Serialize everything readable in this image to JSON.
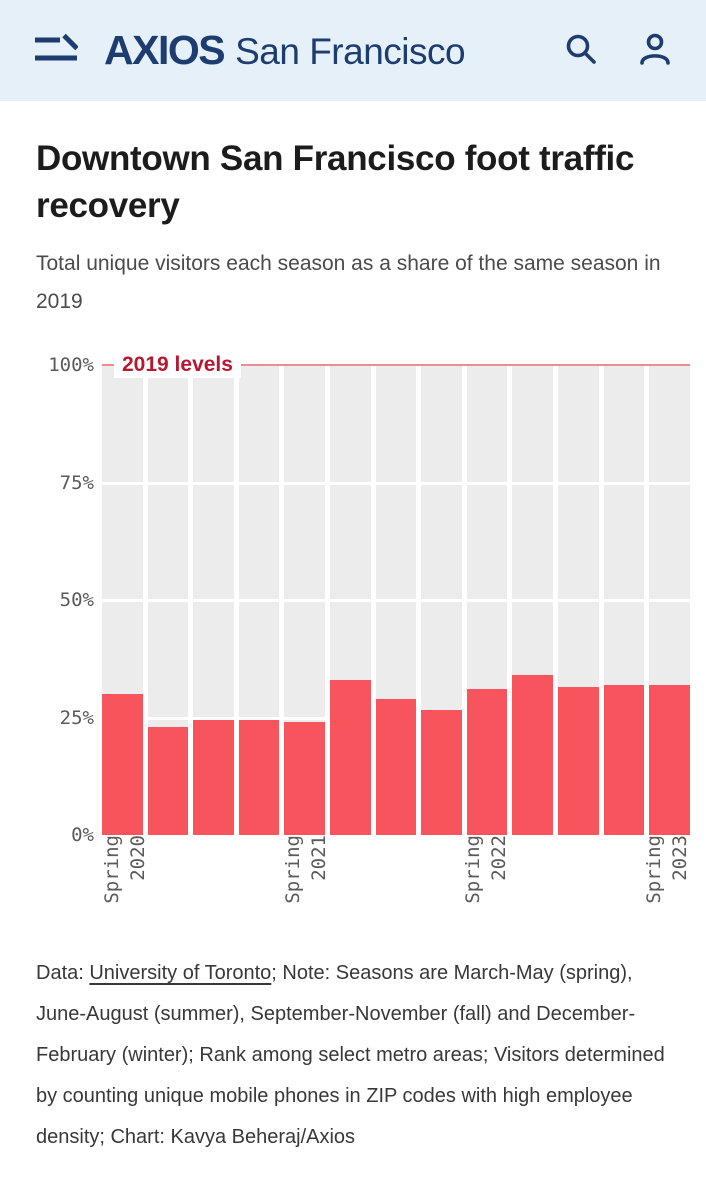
{
  "header": {
    "brand": "AXIOS",
    "edition": "San Francisco",
    "icons": {
      "menu": "menu-icon",
      "search": "search-icon",
      "profile": "profile-icon"
    },
    "navy": "#1d3c6f",
    "background": "#e6f0f9"
  },
  "article": {
    "title": "Downtown San Francisco foot traffic recovery",
    "subtitle": "Total unique visitors each season as a share of the same season in 2019"
  },
  "chart_data": {
    "type": "bar",
    "title": "Downtown San Francisco foot traffic recovery",
    "subtitle": "Total unique visitors each season as a share of the same season in 2019",
    "values": [
      30,
      23,
      24.5,
      24.5,
      24,
      33,
      29,
      26.5,
      31,
      34,
      31.5,
      32,
      32
    ],
    "x_tick_labels": [
      {
        "index": 0,
        "label": "Spring 2020"
      },
      {
        "index": 4,
        "label": "Spring 2021"
      },
      {
        "index": 8,
        "label": "Spring 2022"
      },
      {
        "index": 12,
        "label": "Spring 2023"
      }
    ],
    "y_ticks": [
      "0%",
      "25%",
      "50%",
      "75%",
      "100%"
    ],
    "ylim": [
      0,
      100
    ],
    "gridlines_at": [
      25,
      50,
      75
    ],
    "grid": true,
    "legend": "none",
    "annotation": {
      "text": "2019 levels",
      "y": 100
    },
    "reference_line": {
      "y": 100
    },
    "colors": {
      "bar": "#f8545e",
      "annotation": "#b8182f",
      "reference_line": "#ee8b95",
      "plot_background": "#ececec"
    }
  },
  "footnote": {
    "prefix": "Data: ",
    "source_link": "University of Toronto",
    "rest": "; Note: Seasons are March-May (spring), June-August (summer), September-November (fall) and December-February (winter); Rank among select metro areas; Visitors determined by counting unique mobile phones in ZIP codes with high employee density; Chart: Kavya Beheraj/Axios"
  }
}
